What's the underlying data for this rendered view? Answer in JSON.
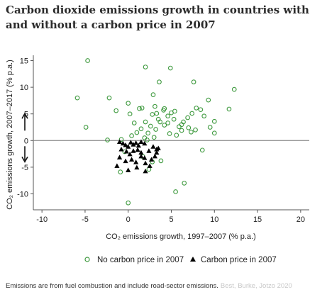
{
  "title": "Carbon dioxide emissions growth in countries with and without a carbon price in 2007",
  "source_text": "Emissions are from fuel combustion and include road-sector emissions.",
  "source_credit": "Best, Burke, Jotzo 2020",
  "colors": {
    "no_price": "#3f9a3f",
    "price": "#000000",
    "axis": "#555555",
    "zero_line": "#8c8c8c"
  },
  "chart_data": {
    "type": "scatter",
    "xlabel": "CO₂ emissions growth, 1997–2007 (% p.a.)",
    "ylabel": "CO₂ emissions growth, 2007–2017 (% p.a.)",
    "xlim": [
      -11,
      21
    ],
    "ylim": [
      -13,
      16
    ],
    "xticks": [
      -10,
      -5,
      0,
      5,
      10,
      15,
      20
    ],
    "yticks": [
      -10,
      -5,
      0,
      5,
      10,
      15
    ],
    "reference_line": {
      "y": 0
    },
    "arrows": [
      "up",
      "down"
    ],
    "legend_position": "bottom",
    "series": [
      {
        "name": "No carbon price in 2007",
        "marker": "circle-open",
        "points": [
          [
            -4.7,
            15.0
          ],
          [
            -5.9,
            8.0
          ],
          [
            -4.9,
            2.5
          ],
          [
            -2.2,
            8.0
          ],
          [
            -1.4,
            5.6
          ],
          [
            -2.4,
            0.1
          ],
          [
            -0.8,
            0.2
          ],
          [
            0.0,
            7.0
          ],
          [
            0.2,
            5.0
          ],
          [
            0.7,
            3.3
          ],
          [
            1.3,
            6.0
          ],
          [
            1.6,
            6.1
          ],
          [
            2.0,
            13.8
          ],
          [
            2.9,
            8.6
          ],
          [
            3.6,
            11.0
          ],
          [
            4.9,
            13.6
          ],
          [
            4.1,
            5.7
          ],
          [
            3.1,
            6.4
          ],
          [
            2.8,
            4.9
          ],
          [
            3.5,
            4.0
          ],
          [
            4.6,
            4.6
          ],
          [
            5.0,
            5.2
          ],
          [
            5.4,
            5.5
          ],
          [
            5.9,
            2.6
          ],
          [
            6.4,
            3.5
          ],
          [
            6.9,
            4.3
          ],
          [
            7.4,
            5.1
          ],
          [
            7.9,
            6.1
          ],
          [
            8.4,
            5.8
          ],
          [
            8.8,
            4.6
          ],
          [
            9.3,
            7.6
          ],
          [
            7.6,
            11.0
          ],
          [
            12.3,
            9.6
          ],
          [
            11.7,
            5.9
          ],
          [
            10.0,
            3.6
          ],
          [
            9.5,
            2.5
          ],
          [
            7.8,
            2.0
          ],
          [
            7.3,
            1.6
          ],
          [
            6.2,
            1.9
          ],
          [
            5.6,
            1.0
          ],
          [
            4.8,
            1.3
          ],
          [
            4.2,
            2.9
          ],
          [
            3.7,
            3.5
          ],
          [
            3.2,
            2.1
          ],
          [
            2.6,
            2.7
          ],
          [
            2.3,
            1.4
          ],
          [
            1.9,
            0.5
          ],
          [
            1.5,
            2.2
          ],
          [
            1.0,
            1.5
          ],
          [
            0.4,
            0.9
          ],
          [
            4.6,
            3.3
          ],
          [
            4.2,
            6.0
          ],
          [
            3.3,
            5.1
          ],
          [
            2.0,
            3.5
          ],
          [
            8.6,
            -1.8
          ],
          [
            10.0,
            1.4
          ],
          [
            6.5,
            -8.0
          ],
          [
            5.5,
            -9.6
          ],
          [
            0.0,
            -11.7
          ],
          [
            -0.9,
            -5.9
          ],
          [
            2.4,
            -5.4
          ],
          [
            1.7,
            -3.0
          ],
          [
            2.8,
            -4.0
          ],
          [
            -0.4,
            -2.1
          ],
          [
            3.8,
            -3.8
          ],
          [
            6.2,
            3.0
          ],
          [
            7.0,
            2.4
          ],
          [
            5.3,
            4.0
          ],
          [
            3.0,
            0.6
          ],
          [
            2.2,
            0.1
          ]
        ]
      },
      {
        "name": "Carbon price in 2007",
        "marker": "triangle-filled",
        "points": [
          [
            -1.0,
            -0.3
          ],
          [
            -0.6,
            -0.6
          ],
          [
            -0.3,
            -0.9
          ],
          [
            0.0,
            -1.2
          ],
          [
            0.3,
            -0.4
          ],
          [
            0.6,
            -0.8
          ],
          [
            0.9,
            -0.5
          ],
          [
            1.2,
            -1.0
          ],
          [
            1.5,
            -0.3
          ],
          [
            1.9,
            -0.6
          ],
          [
            -0.8,
            -1.7
          ],
          [
            -0.2,
            -2.1
          ],
          [
            0.2,
            -2.6
          ],
          [
            0.6,
            -2.0
          ],
          [
            1.1,
            -1.8
          ],
          [
            1.5,
            -2.3
          ],
          [
            1.9,
            -3.3
          ],
          [
            2.4,
            -2.0
          ],
          [
            2.9,
            -1.2
          ],
          [
            3.3,
            -1.7
          ],
          [
            -0.3,
            -3.9
          ],
          [
            0.4,
            -3.6
          ],
          [
            0.9,
            -4.1
          ],
          [
            1.5,
            -3.0
          ],
          [
            2.0,
            -4.3
          ],
          [
            2.7,
            -3.6
          ],
          [
            3.1,
            -3.0
          ],
          [
            -1.3,
            -4.8
          ],
          [
            0.0,
            -5.6
          ],
          [
            1.0,
            -5.1
          ],
          [
            2.0,
            -5.8
          ],
          [
            2.5,
            -4.8
          ],
          [
            3.3,
            -2.3
          ],
          [
            -1.0,
            -3.2
          ],
          [
            3.5,
            -1.5
          ]
        ]
      }
    ]
  }
}
